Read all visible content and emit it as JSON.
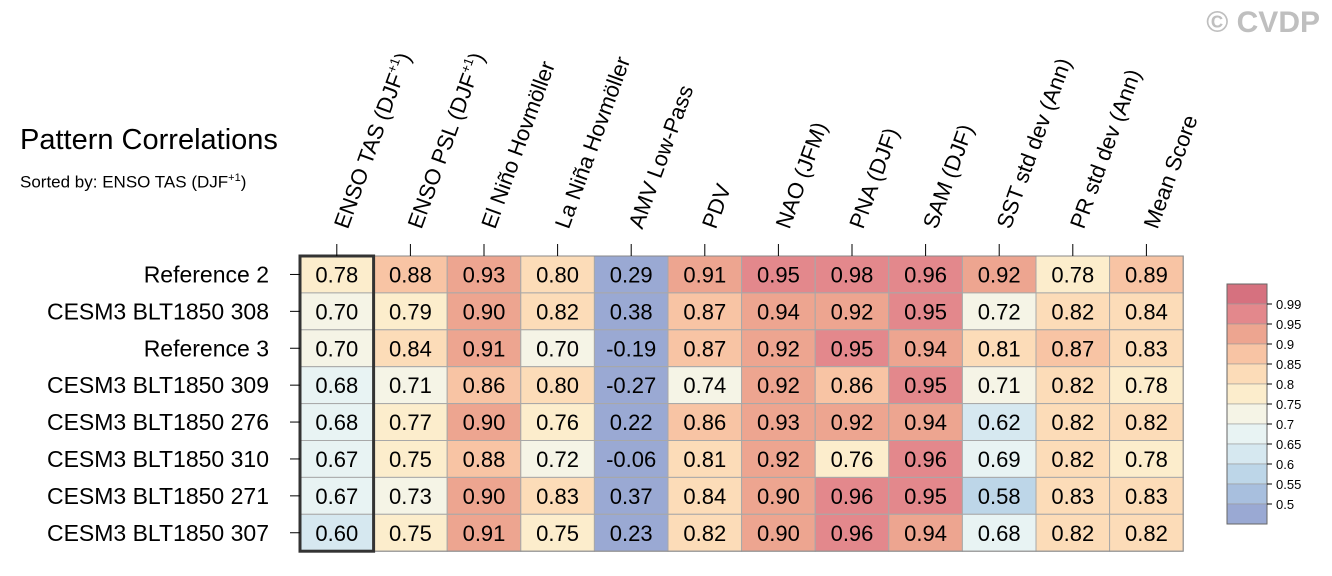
{
  "watermark": "© CVDP",
  "title": "Pattern Correlations",
  "subtitle": {
    "prefix": "Sorted by: ENSO TAS (DJF",
    "sup": "+1",
    "suffix": ")"
  },
  "chart_data": {
    "type": "heatmap",
    "title": "Pattern Correlations",
    "sorted_by": "ENSO TAS (DJF+1)",
    "columns": [
      {
        "label": "ENSO TAS (DJF",
        "sup": "+1",
        "tail": ")"
      },
      {
        "label": "ENSO PSL (DJF",
        "sup": "+1",
        "tail": ")"
      },
      {
        "label": "El Niño Hovmöller"
      },
      {
        "label": "La Niña Hovmöller"
      },
      {
        "label": "AMV Low-Pass"
      },
      {
        "label": "PDV"
      },
      {
        "label": "NAO (JFM)"
      },
      {
        "label": "PNA (DJF)"
      },
      {
        "label": "SAM (DJF)"
      },
      {
        "label": "SST std dev (Ann)"
      },
      {
        "label": "PR std dev (Ann)"
      },
      {
        "label": "Mean Score"
      }
    ],
    "rows": [
      "Reference 2",
      "CESM3 BLT1850 308",
      "Reference 3",
      "CESM3 BLT1850 309",
      "CESM3 BLT1850 276",
      "CESM3 BLT1850 310",
      "CESM3 BLT1850 271",
      "CESM3 BLT1850 307"
    ],
    "values": [
      [
        "0.78",
        "0.88",
        "0.93",
        "0.80",
        "0.29",
        "0.91",
        "0.95",
        "0.98",
        "0.96",
        "0.92",
        "0.78",
        "0.89"
      ],
      [
        "0.70",
        "0.79",
        "0.90",
        "0.82",
        "0.38",
        "0.87",
        "0.94",
        "0.92",
        "0.95",
        "0.72",
        "0.82",
        "0.84"
      ],
      [
        "0.70",
        "0.84",
        "0.91",
        "0.70",
        "-0.19",
        "0.87",
        "0.92",
        "0.95",
        "0.94",
        "0.81",
        "0.87",
        "0.83"
      ],
      [
        "0.68",
        "0.71",
        "0.86",
        "0.80",
        "-0.27",
        "0.74",
        "0.92",
        "0.86",
        "0.95",
        "0.71",
        "0.82",
        "0.78"
      ],
      [
        "0.68",
        "0.77",
        "0.90",
        "0.76",
        "0.22",
        "0.86",
        "0.93",
        "0.92",
        "0.94",
        "0.62",
        "0.82",
        "0.82"
      ],
      [
        "0.67",
        "0.75",
        "0.88",
        "0.72",
        "-0.06",
        "0.81",
        "0.92",
        "0.76",
        "0.96",
        "0.69",
        "0.82",
        "0.78"
      ],
      [
        "0.67",
        "0.73",
        "0.90",
        "0.83",
        "0.37",
        "0.84",
        "0.90",
        "0.96",
        "0.95",
        "0.58",
        "0.83",
        "0.83"
      ],
      [
        "0.60",
        "0.75",
        "0.91",
        "0.75",
        "0.23",
        "0.82",
        "0.90",
        "0.96",
        "0.94",
        "0.68",
        "0.82",
        "0.82"
      ]
    ],
    "highlight_column": 0,
    "colorbar": {
      "thresholds": [
        0.5,
        0.55,
        0.6,
        0.65,
        0.7,
        0.75,
        0.8,
        0.85,
        0.9,
        0.95,
        0.99
      ],
      "labels": [
        "0.99",
        "0.95",
        "0.9",
        "0.85",
        "0.8",
        "0.75",
        "0.7",
        "0.65",
        "0.6",
        "0.55",
        "0.5"
      ],
      "colors": [
        "#9aa9d3",
        "#a8bfde",
        "#bdd6e8",
        "#d6e8f0",
        "#e8f3f3",
        "#f5f4e6",
        "#fcedcc",
        "#fcdcb8",
        "#f8c4a4",
        "#eda590",
        "#e3888c",
        "#d6717f"
      ]
    }
  }
}
